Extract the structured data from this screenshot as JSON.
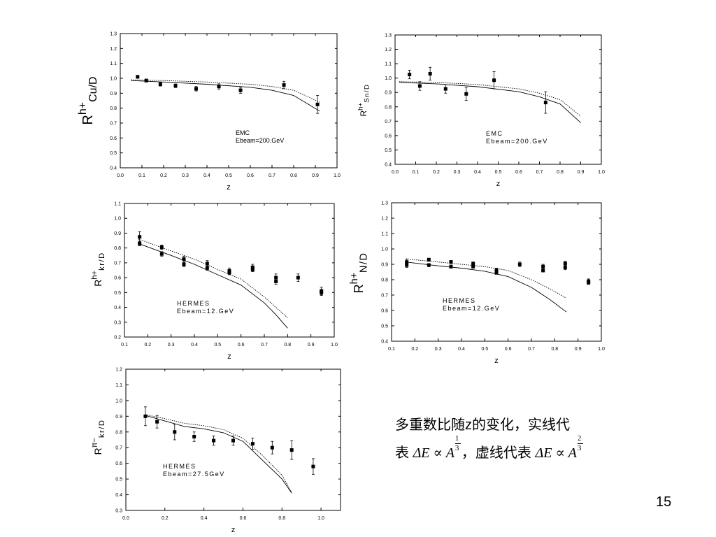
{
  "caption": {
    "line1": "多重数比随z的变化，实线代",
    "line2_prefix": "表",
    "formula1": "ΔE ∝ A",
    "exp1_num": "1",
    "exp1_den": "3",
    "line2_mid": "，虚线代表",
    "formula2": "ΔE ∝ A",
    "exp2_num": "2",
    "exp2_den": "3"
  },
  "page_number": "15",
  "chart_data": [
    {
      "type": "scatter",
      "ylabel": "R",
      "ylabel_sup": "h+",
      "ylabel_sub": "Cu/D",
      "xlabel": "z",
      "annotation": [
        "EMC",
        "Ebeam=200.GeV"
      ],
      "xlim": [
        0.0,
        1.0
      ],
      "ylim": [
        0.4,
        1.3
      ],
      "xticks": [
        "0.0",
        "0.1",
        "0.2",
        "0.3",
        "0.4",
        "0.5",
        "0.6",
        "0.7",
        "0.8",
        "0.9",
        "1.0"
      ],
      "yticks": [
        "0.4",
        "0.5",
        "0.6",
        "0.7",
        "0.8",
        "0.9",
        "1.0",
        "1.1",
        "1.2",
        "1.3"
      ],
      "points": [
        {
          "x": 0.08,
          "y": 1.01,
          "e": 0.01
        },
        {
          "x": 0.12,
          "y": 0.985,
          "e": 0.01
        },
        {
          "x": 0.185,
          "y": 0.96,
          "e": 0.012
        },
        {
          "x": 0.255,
          "y": 0.95,
          "e": 0.012
        },
        {
          "x": 0.35,
          "y": 0.93,
          "e": 0.015
        },
        {
          "x": 0.455,
          "y": 0.945,
          "e": 0.018
        },
        {
          "x": 0.555,
          "y": 0.92,
          "e": 0.02
        },
        {
          "x": 0.755,
          "y": 0.955,
          "e": 0.025
        },
        {
          "x": 0.91,
          "y": 0.825,
          "e": 0.06
        }
      ],
      "solid": [
        [
          0.05,
          0.985
        ],
        [
          0.2,
          0.975
        ],
        [
          0.4,
          0.96
        ],
        [
          0.6,
          0.94
        ],
        [
          0.7,
          0.92
        ],
        [
          0.8,
          0.885
        ],
        [
          0.92,
          0.78
        ]
      ],
      "dotted": [
        [
          0.05,
          0.99
        ],
        [
          0.2,
          0.985
        ],
        [
          0.4,
          0.975
        ],
        [
          0.6,
          0.96
        ],
        [
          0.7,
          0.945
        ],
        [
          0.8,
          0.92
        ],
        [
          0.92,
          0.84
        ]
      ]
    },
    {
      "type": "scatter",
      "ylabel": "R",
      "ylabel_sup": "h+",
      "ylabel_sub": "Sn/D",
      "xlabel": "z",
      "annotation": [
        "EMC",
        "Ebeam=200.GeV"
      ],
      "xlim": [
        0.0,
        1.0
      ],
      "ylim": [
        0.4,
        1.3
      ],
      "xticks": [
        "0.0",
        "0.1",
        "0.2",
        "0.3",
        "0.4",
        "0.5",
        "0.6",
        "0.7",
        "0.8",
        "0.9",
        "1.0"
      ],
      "yticks": [
        "0.4",
        "0.5",
        "0.6",
        "0.7",
        "0.8",
        "0.9",
        "1.0",
        "1.1",
        "1.2",
        "1.3"
      ],
      "points": [
        {
          "x": 0.07,
          "y": 1.025,
          "e": 0.03
        },
        {
          "x": 0.12,
          "y": 0.945,
          "e": 0.03
        },
        {
          "x": 0.17,
          "y": 1.03,
          "e": 0.045
        },
        {
          "x": 0.245,
          "y": 0.925,
          "e": 0.03
        },
        {
          "x": 0.345,
          "y": 0.89,
          "e": 0.045
        },
        {
          "x": 0.48,
          "y": 0.985,
          "e": 0.06
        },
        {
          "x": 0.73,
          "y": 0.83,
          "e": 0.075
        }
      ],
      "solid": [
        [
          0.02,
          0.97
        ],
        [
          0.2,
          0.96
        ],
        [
          0.4,
          0.94
        ],
        [
          0.6,
          0.905
        ],
        [
          0.7,
          0.87
        ],
        [
          0.8,
          0.82
        ],
        [
          0.9,
          0.69
        ]
      ],
      "dotted": [
        [
          0.02,
          0.975
        ],
        [
          0.2,
          0.97
        ],
        [
          0.4,
          0.955
        ],
        [
          0.6,
          0.925
        ],
        [
          0.7,
          0.895
        ],
        [
          0.8,
          0.85
        ],
        [
          0.9,
          0.735
        ]
      ]
    },
    {
      "type": "scatter",
      "ylabel": "R",
      "ylabel_sup": "h+",
      "ylabel_sub": "kr/D",
      "xlabel": "z",
      "annotation": [
        "HERMES",
        "Ebeam=12.GeV"
      ],
      "xlim": [
        0.1,
        1.0
      ],
      "ylim": [
        0.2,
        1.1
      ],
      "xticks": [
        "0.1",
        "0.2",
        "0.3",
        "0.4",
        "0.5",
        "0.6",
        "0.7",
        "0.8",
        "0.9",
        "1.0"
      ],
      "yticks": [
        "0.2",
        "0.3",
        "0.4",
        "0.5",
        "0.6",
        "0.7",
        "0.8",
        "0.9",
        "1.0",
        "1.1"
      ],
      "points": [
        {
          "x": 0.165,
          "y": 0.875,
          "e": 0.035
        },
        {
          "x": 0.165,
          "y": 0.83,
          "e": 0.015
        },
        {
          "x": 0.26,
          "y": 0.805,
          "e": 0.015
        },
        {
          "x": 0.26,
          "y": 0.76,
          "e": 0.015
        },
        {
          "x": 0.355,
          "y": 0.725,
          "e": 0.02
        },
        {
          "x": 0.355,
          "y": 0.69,
          "e": 0.015
        },
        {
          "x": 0.455,
          "y": 0.695,
          "e": 0.02
        },
        {
          "x": 0.455,
          "y": 0.665,
          "e": 0.015
        },
        {
          "x": 0.55,
          "y": 0.645,
          "e": 0.02
        },
        {
          "x": 0.55,
          "y": 0.635,
          "e": 0.015
        },
        {
          "x": 0.65,
          "y": 0.67,
          "e": 0.02
        },
        {
          "x": 0.65,
          "y": 0.655,
          "e": 0.015
        },
        {
          "x": 0.75,
          "y": 0.6,
          "e": 0.025
        },
        {
          "x": 0.75,
          "y": 0.575,
          "e": 0.02
        },
        {
          "x": 0.845,
          "y": 0.6,
          "e": 0.025
        },
        {
          "x": 0.945,
          "y": 0.51,
          "e": 0.025
        },
        {
          "x": 0.945,
          "y": 0.5,
          "e": 0.02
        }
      ],
      "solid": [
        [
          0.16,
          0.83
        ],
        [
          0.3,
          0.75
        ],
        [
          0.4,
          0.69
        ],
        [
          0.5,
          0.62
        ],
        [
          0.6,
          0.55
        ],
        [
          0.7,
          0.43
        ],
        [
          0.75,
          0.35
        ],
        [
          0.8,
          0.26
        ]
      ],
      "dotted": [
        [
          0.16,
          0.86
        ],
        [
          0.3,
          0.78
        ],
        [
          0.4,
          0.725
        ],
        [
          0.5,
          0.655
        ],
        [
          0.6,
          0.59
        ],
        [
          0.7,
          0.47
        ],
        [
          0.75,
          0.4
        ],
        [
          0.8,
          0.33
        ]
      ]
    },
    {
      "type": "scatter",
      "ylabel": "R",
      "ylabel_sup": "h+",
      "ylabel_sub": "N/D",
      "xlabel": "z",
      "annotation": [
        "HERMES",
        "Ebeam=12.GeV"
      ],
      "xlim": [
        0.1,
        1.0
      ],
      "ylim": [
        0.4,
        1.3
      ],
      "xticks": [
        "0.1",
        "0.2",
        "0.3",
        "0.4",
        "0.5",
        "0.6",
        "0.7",
        "0.8",
        "0.9",
        "1.0"
      ],
      "yticks": [
        "0.4",
        "0.5",
        "0.6",
        "0.7",
        "0.8",
        "0.9",
        "1.0",
        "1.1",
        "1.2",
        "1.3"
      ],
      "points": [
        {
          "x": 0.165,
          "y": 0.915,
          "e": 0.02
        },
        {
          "x": 0.165,
          "y": 0.895,
          "e": 0.015
        },
        {
          "x": 0.26,
          "y": 0.93,
          "e": 0.01
        },
        {
          "x": 0.26,
          "y": 0.895,
          "e": 0.01
        },
        {
          "x": 0.355,
          "y": 0.915,
          "e": 0.01
        },
        {
          "x": 0.355,
          "y": 0.885,
          "e": 0.01
        },
        {
          "x": 0.45,
          "y": 0.905,
          "e": 0.01
        },
        {
          "x": 0.45,
          "y": 0.885,
          "e": 0.01
        },
        {
          "x": 0.55,
          "y": 0.86,
          "e": 0.015
        },
        {
          "x": 0.55,
          "y": 0.845,
          "e": 0.01
        },
        {
          "x": 0.65,
          "y": 0.9,
          "e": 0.015
        },
        {
          "x": 0.75,
          "y": 0.885,
          "e": 0.015
        },
        {
          "x": 0.75,
          "y": 0.86,
          "e": 0.01
        },
        {
          "x": 0.845,
          "y": 0.905,
          "e": 0.015
        },
        {
          "x": 0.845,
          "y": 0.88,
          "e": 0.015
        },
        {
          "x": 0.945,
          "y": 0.79,
          "e": 0.015
        },
        {
          "x": 0.945,
          "y": 0.78,
          "e": 0.01
        }
      ],
      "solid": [
        [
          0.16,
          0.915
        ],
        [
          0.3,
          0.89
        ],
        [
          0.4,
          0.875
        ],
        [
          0.5,
          0.855
        ],
        [
          0.6,
          0.82
        ],
        [
          0.7,
          0.75
        ],
        [
          0.78,
          0.67
        ],
        [
          0.85,
          0.59
        ]
      ],
      "dotted": [
        [
          0.16,
          0.935
        ],
        [
          0.3,
          0.915
        ],
        [
          0.4,
          0.9
        ],
        [
          0.5,
          0.885
        ],
        [
          0.6,
          0.86
        ],
        [
          0.7,
          0.8
        ],
        [
          0.78,
          0.74
        ],
        [
          0.85,
          0.68
        ]
      ]
    },
    {
      "type": "scatter",
      "ylabel": "R",
      "ylabel_sup": "π−",
      "ylabel_sub": "kr/D",
      "xlabel": "z",
      "annotation": [
        "HERMES",
        "Ebeam=27.5GeV"
      ],
      "xlim": [
        0.0,
        1.1
      ],
      "ylim": [
        0.3,
        1.2
      ],
      "xticks": [
        "0.0",
        "0.2",
        "0.4",
        "0.6",
        "0.8",
        "1.0"
      ],
      "xtick_values": [
        0.0,
        0.2,
        0.4,
        0.6,
        0.8,
        1.0
      ],
      "yticks": [
        "0.3",
        "0.4",
        "0.5",
        "0.6",
        "0.7",
        "0.8",
        "0.9",
        "1.0",
        "1.1",
        "1.2"
      ],
      "points": [
        {
          "x": 0.1,
          "y": 0.9,
          "e": 0.06
        },
        {
          "x": 0.16,
          "y": 0.865,
          "e": 0.04
        },
        {
          "x": 0.25,
          "y": 0.8,
          "e": 0.05
        },
        {
          "x": 0.35,
          "y": 0.77,
          "e": 0.03
        },
        {
          "x": 0.45,
          "y": 0.745,
          "e": 0.03
        },
        {
          "x": 0.55,
          "y": 0.745,
          "e": 0.03
        },
        {
          "x": 0.65,
          "y": 0.725,
          "e": 0.035
        },
        {
          "x": 0.75,
          "y": 0.7,
          "e": 0.04
        },
        {
          "x": 0.85,
          "y": 0.685,
          "e": 0.06
        },
        {
          "x": 0.96,
          "y": 0.58,
          "e": 0.05
        }
      ],
      "solid": [
        [
          0.1,
          0.905
        ],
        [
          0.2,
          0.87
        ],
        [
          0.3,
          0.835
        ],
        [
          0.4,
          0.82
        ],
        [
          0.5,
          0.795
        ],
        [
          0.6,
          0.74
        ],
        [
          0.7,
          0.62
        ],
        [
          0.8,
          0.5
        ],
        [
          0.85,
          0.41
        ]
      ],
      "dotted": [
        [
          0.1,
          0.91
        ],
        [
          0.2,
          0.885
        ],
        [
          0.3,
          0.855
        ],
        [
          0.4,
          0.84
        ],
        [
          0.5,
          0.815
        ],
        [
          0.6,
          0.76
        ],
        [
          0.7,
          0.65
        ],
        [
          0.8,
          0.525
        ],
        [
          0.85,
          0.415
        ]
      ]
    }
  ]
}
